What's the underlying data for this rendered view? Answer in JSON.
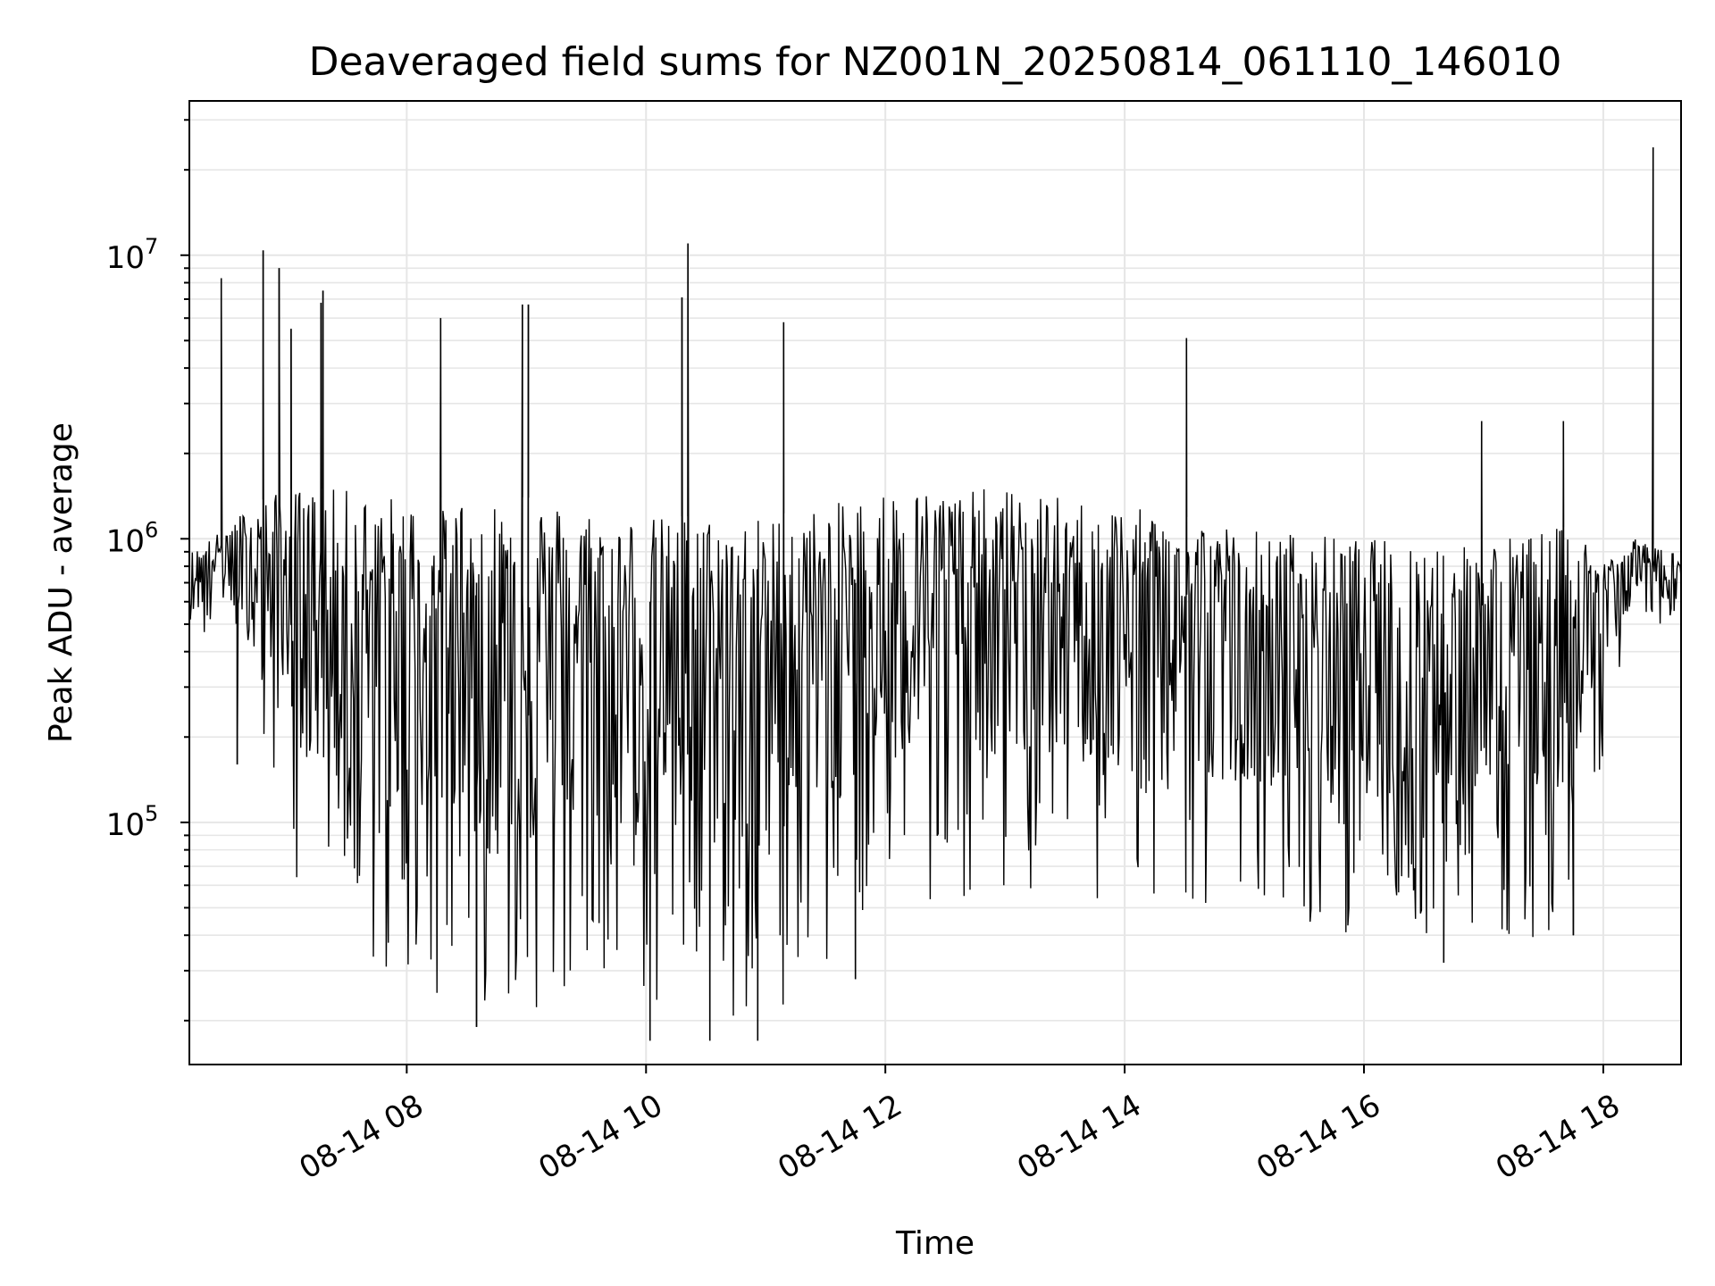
{
  "chart_data": {
    "type": "line",
    "title": "Deaveraged field sums for NZ001N_20250814_061110_146010",
    "xlabel": "Time",
    "ylabel": "Peak ADU - average",
    "x_ticks": [
      "08-14 08",
      "08-14 10",
      "08-14 12",
      "08-14 14",
      "08-14 16",
      "08-14 18"
    ],
    "y_ticks": [
      {
        "base": "10",
        "exp": "5",
        "value": 100000
      },
      {
        "base": "10",
        "exp": "6",
        "value": 1000000
      },
      {
        "base": "10",
        "exp": "7",
        "value": 10000000
      }
    ],
    "xlim": [
      "2025-08-14 06:11",
      "2025-08-14 18:39"
    ],
    "ylim": [
      14000,
      35000000
    ],
    "yscale": "log",
    "grid": true,
    "line_color": "#000000",
    "series": [
      {
        "profile": [
          {
            "t": "2025-08-14 06:11",
            "hi": 900000,
            "lo": 380000
          },
          {
            "t": "2025-08-14 06:30",
            "hi": 1100000,
            "lo": 550000
          },
          {
            "t": "2025-08-14 06:40",
            "hi": 1300000,
            "lo": 250000
          },
          {
            "t": "2025-08-14 07:00",
            "hi": 1500000,
            "lo": 70000
          },
          {
            "t": "2025-08-14 07:30",
            "hi": 1500000,
            "lo": 30000
          },
          {
            "t": "2025-08-14 08:00",
            "hi": 1400000,
            "lo": 25000
          },
          {
            "t": "2025-08-14 09:00",
            "hi": 1400000,
            "lo": 22000
          },
          {
            "t": "2025-08-14 10:00",
            "hi": 1200000,
            "lo": 20000
          },
          {
            "t": "2025-08-14 10:30",
            "hi": 1200000,
            "lo": 18000
          },
          {
            "t": "2025-08-14 11:00",
            "hi": 1200000,
            "lo": 20000
          },
          {
            "t": "2025-08-14 11:30",
            "hi": 1300000,
            "lo": 30000
          },
          {
            "t": "2025-08-14 12:00",
            "hi": 1500000,
            "lo": 55000
          },
          {
            "t": "2025-08-14 13:00",
            "hi": 1500000,
            "lo": 50000
          },
          {
            "t": "2025-08-14 14:00",
            "hi": 1300000,
            "lo": 50000
          },
          {
            "t": "2025-08-14 15:00",
            "hi": 1100000,
            "lo": 45000
          },
          {
            "t": "2025-08-14 16:00",
            "hi": 1000000,
            "lo": 40000
          },
          {
            "t": "2025-08-14 17:00",
            "hi": 1000000,
            "lo": 35000
          },
          {
            "t": "2025-08-14 17:40",
            "hi": 1100000,
            "lo": 42000
          },
          {
            "t": "2025-08-14 18:05",
            "hi": 900000,
            "lo": 250000
          },
          {
            "t": "2025-08-14 18:15",
            "hi": 1000000,
            "lo": 500000
          },
          {
            "t": "2025-08-14 18:39",
            "hi": 900000,
            "lo": 480000
          }
        ],
        "spikes": [
          {
            "t": "2025-08-14 06:27",
            "value": 8300000
          },
          {
            "t": "2025-08-14 06:48",
            "value": 10400000
          },
          {
            "t": "2025-08-14 06:56",
            "value": 9000000
          },
          {
            "t": "2025-08-14 07:02",
            "value": 5500000
          },
          {
            "t": "2025-08-14 07:17",
            "value": 6800000
          },
          {
            "t": "2025-08-14 07:18",
            "value": 7500000
          },
          {
            "t": "2025-08-14 08:17",
            "value": 6000000
          },
          {
            "t": "2025-08-14 08:58",
            "value": 6700000
          },
          {
            "t": "2025-08-14 09:01",
            "value": 6700000
          },
          {
            "t": "2025-08-14 10:18",
            "value": 7100000
          },
          {
            "t": "2025-08-14 10:21",
            "value": 11000000
          },
          {
            "t": "2025-08-14 11:09",
            "value": 5800000
          },
          {
            "t": "2025-08-14 14:31",
            "value": 5100000
          },
          {
            "t": "2025-08-14 16:59",
            "value": 2600000
          },
          {
            "t": "2025-08-14 17:40",
            "value": 2600000
          },
          {
            "t": "2025-08-14 18:25",
            "value": 24000000
          }
        ],
        "dips": [
          {
            "t": "2025-08-14 06:35",
            "value": 160000
          },
          {
            "t": "2025-08-14 08:35",
            "value": 19000.0
          },
          {
            "t": "2025-08-14 10:02",
            "value": 17000
          },
          {
            "t": "2025-08-14 10:32",
            "value": 17000
          },
          {
            "t": "2025-08-14 10:56",
            "value": 17000
          },
          {
            "t": "2025-08-14 11:45",
            "value": 28000
          },
          {
            "t": "2025-08-14 16:40",
            "value": 32000
          },
          {
            "t": "2025-08-14 17:45",
            "value": 40000
          }
        ]
      }
    ]
  }
}
